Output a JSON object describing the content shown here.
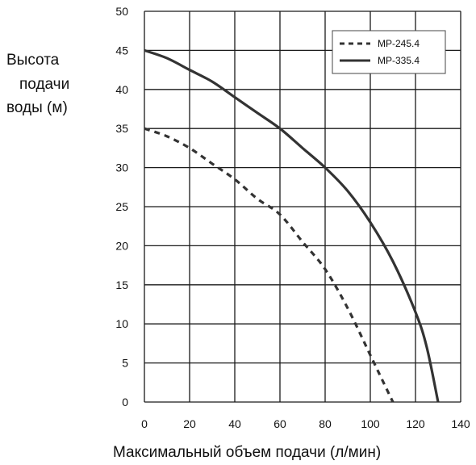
{
  "chart_data": {
    "type": "line",
    "title": "",
    "ylabel_lines": [
      "Высота",
      "подачи",
      "воды (м)"
    ],
    "xlabel": "Максимальный объем подачи (л/мин)",
    "xlim": [
      0,
      140
    ],
    "ylim": [
      0,
      50
    ],
    "x_ticks": [
      "0",
      "20",
      "40",
      "60",
      "80",
      "100",
      "120",
      "140"
    ],
    "y_ticks": [
      "0",
      "5",
      "10",
      "15",
      "20",
      "25",
      "30",
      "35",
      "40",
      "45",
      "50"
    ],
    "grid": true,
    "legend_position": "top-right",
    "series": [
      {
        "name": "MP-245.4",
        "style": "dashed",
        "color": "#333333",
        "x": [
          0,
          10,
          20,
          30,
          40,
          50,
          60,
          70,
          80,
          90,
          100,
          105,
          110
        ],
        "y": [
          35,
          34,
          32.5,
          30.5,
          28.5,
          26,
          24,
          20.5,
          17,
          12,
          6,
          3,
          0
        ]
      },
      {
        "name": "MP-335.4",
        "style": "solid",
        "color": "#333333",
        "x": [
          0,
          10,
          20,
          30,
          40,
          50,
          60,
          70,
          80,
          90,
          100,
          110,
          120,
          125,
          130
        ],
        "y": [
          45,
          44,
          42.5,
          41,
          39,
          37,
          35,
          32.5,
          30,
          27,
          23,
          18,
          11.5,
          7,
          0
        ]
      }
    ]
  }
}
